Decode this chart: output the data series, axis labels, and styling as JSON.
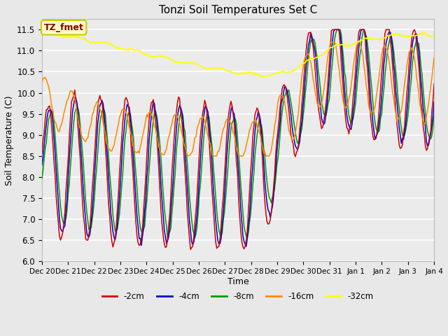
{
  "title": "Tonzi Soil Temperatures Set C",
  "xlabel": "Time",
  "ylabel": "Soil Temperature (C)",
  "ylim": [
    6.0,
    11.75
  ],
  "yticks": [
    6.0,
    6.5,
    7.0,
    7.5,
    8.0,
    8.5,
    9.0,
    9.5,
    10.0,
    10.5,
    11.0,
    11.5
  ],
  "colors": {
    "2cm": "#cc0000",
    "4cm": "#0000cc",
    "8cm": "#009900",
    "16cm": "#ff8800",
    "32cm": "#ffff00"
  },
  "annotation_label": "TZ_fmet",
  "annotation_bg": "#ffffcc",
  "annotation_border": "#cccc00",
  "annotation_text_color": "#880000",
  "bg_color": "#e8e8e8",
  "plot_bg": "#ebebeb",
  "x_labels": [
    "Dec 20",
    "Dec 21",
    "Dec 22",
    "Dec 23",
    "Dec 24",
    "Dec 25",
    "Dec 26",
    "Dec 27",
    "Dec 28",
    "Dec 29",
    "Dec 30",
    "Dec 31",
    "Jan 1",
    "Jan 2",
    "Jan 3",
    "Jan 4"
  ],
  "legend": [
    {
      "label": "-2cm",
      "color": "#cc0000"
    },
    {
      "label": "-4cm",
      "color": "#0000cc"
    },
    {
      "label": "-8cm",
      "color": "#009900"
    },
    {
      "label": "-16cm",
      "color": "#ff8800"
    },
    {
      "label": "-32cm",
      "color": "#ffff00"
    }
  ]
}
